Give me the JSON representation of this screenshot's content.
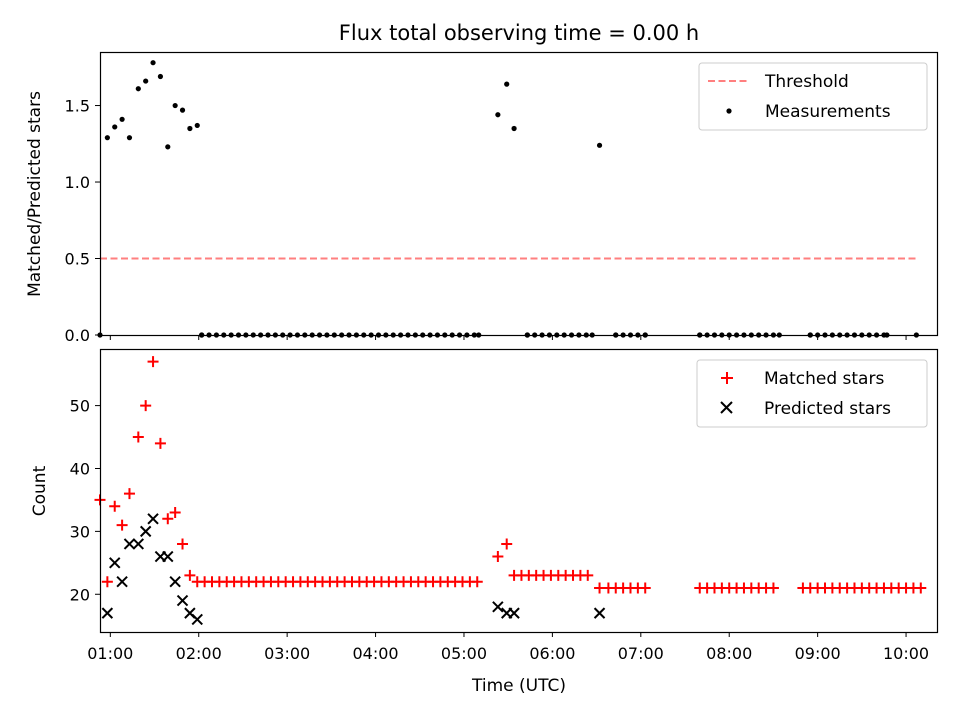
{
  "chart_data": [
    {
      "type": "scatter",
      "title": "Flux total observing time = 0.00 h",
      "ylabel": "Matched/Predicted stars",
      "xlabel": "",
      "ylim": [
        0,
        1.85
      ],
      "yticks": [
        0.0,
        0.5,
        1.0,
        1.5
      ],
      "ytick_labels": [
        "0.0",
        "0.5",
        "1.0",
        "1.5"
      ],
      "xlim": [
        "00:53",
        "10:21"
      ],
      "legend_position": "top-right",
      "colors": {
        "threshold": "#ff7f7f",
        "measurements": "#000000"
      },
      "series": [
        {
          "name": "Threshold",
          "style": "dashed-line",
          "x": [
            "00:53",
            "10:07"
          ],
          "y": [
            0.5,
            0.5
          ]
        },
        {
          "name": "Measurements",
          "style": "dot",
          "x": [
            "00:53",
            "00:58",
            "01:03",
            "01:08",
            "01:13",
            "01:19",
            "01:24",
            "01:29",
            "01:34",
            "01:39",
            "01:44",
            "01:49",
            "01:54",
            "01:59",
            "05:23",
            "05:29",
            "05:34",
            "06:32",
            "02:02",
            "05:10",
            "05:43",
            "06:27",
            "06:43",
            "07:03",
            "07:40",
            "08:34",
            "08:55",
            "09:47",
            "10:07"
          ],
          "y": [
            0.0,
            1.29,
            1.36,
            1.41,
            1.29,
            1.61,
            1.66,
            1.78,
            1.69,
            1.23,
            1.5,
            1.47,
            1.35,
            1.37,
            1.44,
            1.64,
            1.35,
            1.24,
            0.0,
            0.0,
            0.0,
            0.0,
            0.0,
            0.0,
            0.0,
            0.0,
            0.0,
            0.0,
            0.0
          ]
        }
      ],
      "zero_runs": [
        [
          "02:02",
          "05:10"
        ],
        [
          "05:43",
          "06:27"
        ],
        [
          "06:43",
          "07:03"
        ],
        [
          "07:40",
          "08:34"
        ],
        [
          "08:55",
          "09:47"
        ]
      ]
    },
    {
      "type": "scatter",
      "title": "",
      "xlabel": "Time (UTC)",
      "ylabel": "Count",
      "ylim": [
        14,
        59
      ],
      "yticks": [
        20,
        30,
        40,
        50
      ],
      "ytick_labels": [
        "20",
        "30",
        "40",
        "50"
      ],
      "xticks": [
        "01:00",
        "02:00",
        "03:00",
        "04:00",
        "05:00",
        "06:00",
        "07:00",
        "08:00",
        "09:00",
        "10:00"
      ],
      "legend_position": "top-right",
      "colors": {
        "matched": "#ff0000",
        "predicted": "#000000"
      },
      "series": [
        {
          "name": "Matched stars",
          "marker": "plus",
          "x": [
            "00:53",
            "00:58",
            "01:03",
            "01:08",
            "01:13",
            "01:19",
            "01:24",
            "01:29",
            "01:34",
            "01:39",
            "01:44",
            "01:49",
            "01:54",
            "05:23",
            "05:29",
            "06:32"
          ],
          "y": [
            35,
            22,
            34,
            31,
            36,
            45,
            50,
            57,
            44,
            32,
            33,
            28,
            23,
            26,
            28,
            21
          ]
        },
        {
          "name": "Predicted stars",
          "marker": "x",
          "x": [
            "00:58",
            "01:03",
            "01:08",
            "01:13",
            "01:19",
            "01:24",
            "01:29",
            "01:34",
            "01:39",
            "01:44",
            "01:49",
            "01:54",
            "01:59",
            "05:23",
            "05:29",
            "05:34",
            "06:32"
          ],
          "y": [
            17,
            25,
            22,
            28,
            28,
            30,
            32,
            26,
            26,
            22,
            19,
            17,
            16,
            18,
            17,
            17,
            17
          ]
        }
      ],
      "flat_runs": [
        {
          "from": "01:59",
          "to": "05:10",
          "y": 22
        },
        {
          "from": "05:34",
          "to": "06:27",
          "y": 23
        },
        {
          "from": "06:38",
          "to": "07:03",
          "y": 21
        },
        {
          "from": "07:40",
          "to": "08:34",
          "y": 21
        },
        {
          "from": "08:50",
          "to": "10:12",
          "y": 21
        }
      ]
    }
  ]
}
